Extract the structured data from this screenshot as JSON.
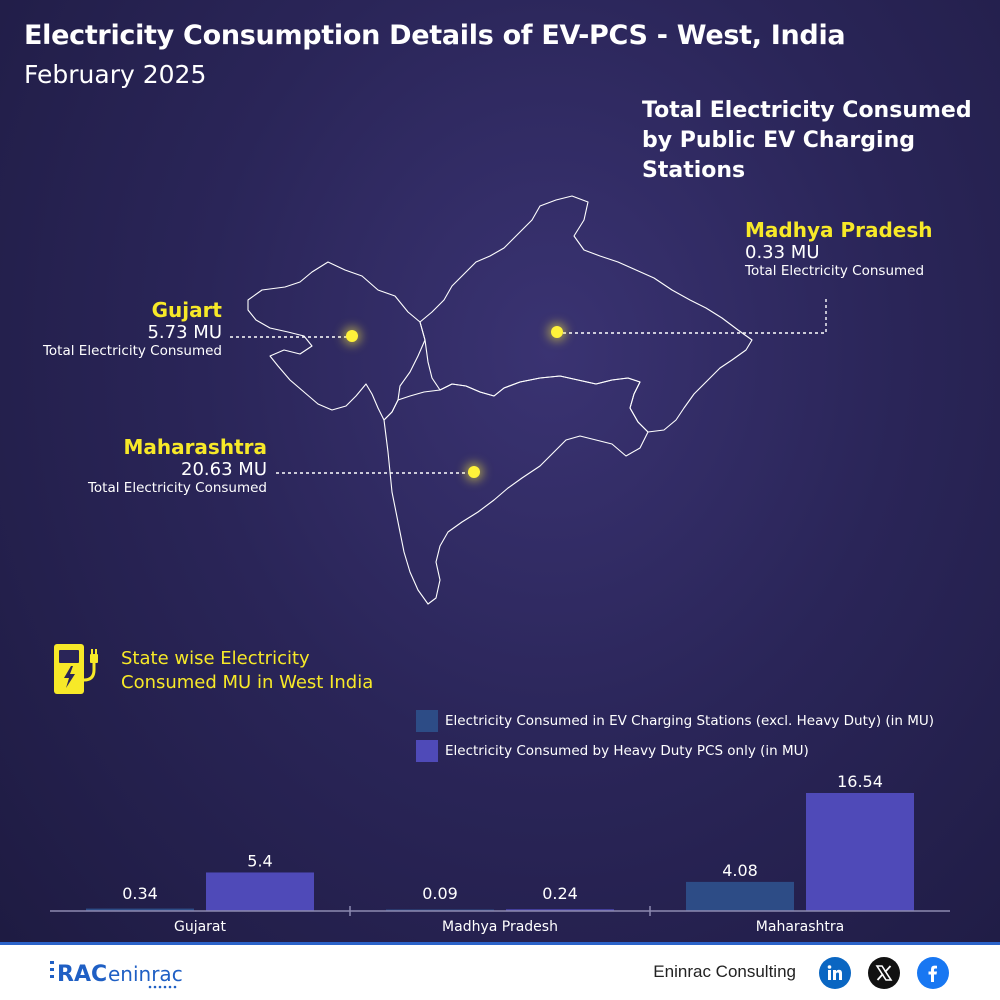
{
  "header": {
    "title": "Electricity Consumption Details of EV-PCS - West, India",
    "subtitle": "February 2025"
  },
  "map": {
    "title": "Total Electricity Consumed by Public EV Charging Stations",
    "states": [
      {
        "name": "Gujart",
        "value": "5.73 MU",
        "caption": "Total Electricity Consumed"
      },
      {
        "name": "Maharashtra",
        "value": "20.63 MU",
        "caption": "Total Electricity Consumed"
      },
      {
        "name": "Madhya Pradesh",
        "value": "0.33 MU",
        "caption": "Total Electricity Consumed"
      }
    ],
    "dot_color": "#fff23a"
  },
  "section": {
    "title_line1": "State wise Electricity",
    "title_line2": "Consumed MU in West India",
    "icon": "ev-charger-icon"
  },
  "chart_data": {
    "type": "bar",
    "categories": [
      "Gujarat",
      "Madhya Pradesh",
      "Maharashtra"
    ],
    "series": [
      {
        "name": "Electricity Consumed in EV Charging Stations (excl. Heavy Duty) (in MU)",
        "values": [
          0.34,
          0.09,
          4.08
        ],
        "color": "#2d4c86"
      },
      {
        "name": "Electricity Consumed by Heavy Duty PCS only (in MU)",
        "values": [
          5.4,
          0.24,
          16.54
        ],
        "color": "#4f4ab8"
      }
    ],
    "data_labels": [
      "0.34",
      "5.4",
      "0.09",
      "0.24",
      "4.08",
      "16.54"
    ],
    "title": "",
    "xlabel": "",
    "ylabel": "",
    "ylim": [
      0,
      16.54
    ],
    "grid": false,
    "legend": "top-right"
  },
  "footer": {
    "logo_text": "RAC eninrac",
    "brand": "Eninrac Consulting",
    "social": [
      "linkedin-icon",
      "x-icon",
      "facebook-icon"
    ],
    "accent": "#2b63c9"
  }
}
